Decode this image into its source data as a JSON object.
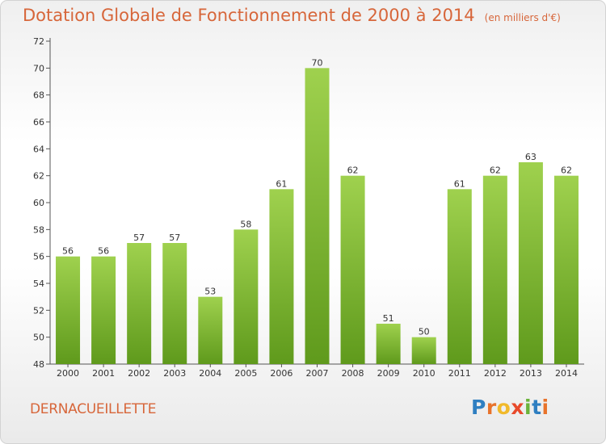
{
  "title": "Dotation Globale de Fonctionnement de 2000 à 2014",
  "unit_label": "(en milliers d'€)",
  "commune": "DERNACUEILLETTE",
  "logo": {
    "letters": [
      "P",
      "r",
      "o",
      "x",
      "i",
      "t",
      "i"
    ]
  },
  "colors": {
    "title": "#d7663a",
    "bar_top": "#9fd14e",
    "bar_bottom": "#5f9a1c",
    "axis": "#555555"
  },
  "chart_data": {
    "type": "bar",
    "categories": [
      "2000",
      "2001",
      "2002",
      "2003",
      "2004",
      "2005",
      "2006",
      "2007",
      "2008",
      "2009",
      "2010",
      "2011",
      "2012",
      "2013",
      "2014"
    ],
    "values": [
      56,
      56,
      57,
      57,
      53,
      58,
      61,
      70,
      62,
      51,
      50,
      61,
      62,
      63,
      62
    ],
    "data_labels": [
      "56",
      "56",
      "57",
      "57",
      "53",
      "58",
      "61",
      "70",
      "62",
      "51",
      "50",
      "61",
      "62",
      "63",
      "62"
    ],
    "yticks": [
      "48",
      "50",
      "52",
      "54",
      "56",
      "58",
      "60",
      "62",
      "64",
      "66",
      "68",
      "70",
      "72"
    ],
    "ylim": [
      48,
      72
    ],
    "grid": false,
    "legend": "none"
  }
}
